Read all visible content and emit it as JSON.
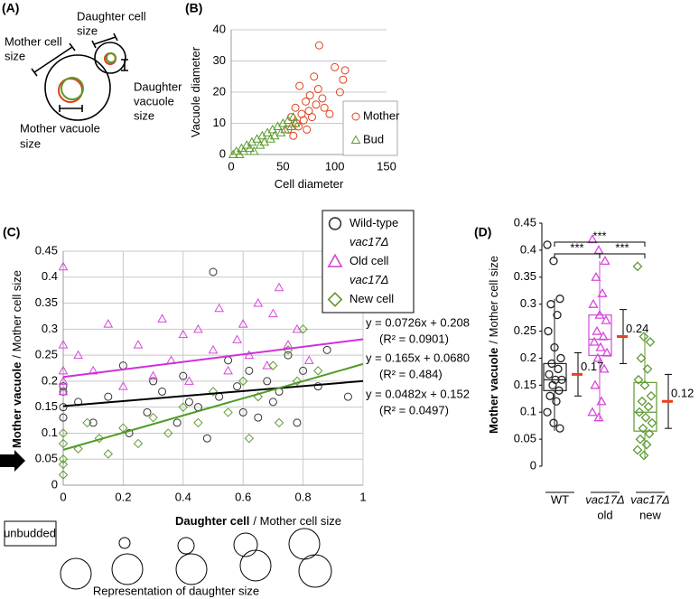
{
  "panel_labels": [
    "(A)",
    "(B)",
    "(C)",
    "(D)"
  ],
  "diagram": {
    "mother_cell_size": [
      "Mother cell",
      "size"
    ],
    "daughter_cell_size": [
      "Daughter cell",
      "size"
    ],
    "daughter_vacuole_size": [
      "Daughter",
      "vacuole",
      "size"
    ],
    "mother_vacuole_size": [
      "Mother vacuole",
      "size"
    ]
  },
  "representation": {
    "unbudded": "unbudded",
    "caption": "Representation of daughter size"
  },
  "chart_data": [
    {
      "type": "scatter",
      "xlabel": [
        "Cell diameter"
      ],
      "ylabel": [
        "Vacuole diameter"
      ],
      "xlim": [
        0,
        150
      ],
      "xticks": [
        0,
        50,
        100,
        150
      ],
      "ylim": [
        0,
        40
      ],
      "yticks": [
        0,
        10,
        20,
        30,
        40
      ],
      "grid": "y",
      "legend": "lower right",
      "series": [
        {
          "name": [
            "Mother"
          ],
          "color": "#e0401c",
          "marker": "circle",
          "x": [
            55,
            58,
            60,
            62,
            63,
            65,
            66,
            68,
            70,
            72,
            73,
            75,
            76,
            78,
            80,
            82,
            84,
            85,
            88,
            90,
            95,
            100,
            105,
            108,
            110
          ],
          "values": [
            8,
            12,
            6,
            15,
            10,
            9,
            22,
            13,
            11,
            17,
            8,
            14,
            19,
            12,
            25,
            16,
            21,
            35,
            18,
            15,
            13,
            28,
            20,
            24,
            27
          ]
        },
        {
          "name": [
            "Bud"
          ],
          "color": "#5b9b2b",
          "marker": "triangle",
          "x": [
            2,
            5,
            8,
            10,
            12,
            15,
            18,
            20,
            22,
            25,
            28,
            30,
            32,
            35,
            38,
            40,
            42,
            45,
            48,
            50,
            52,
            55,
            58,
            60,
            62
          ],
          "values": [
            0,
            1,
            0,
            2,
            1,
            3,
            2,
            4,
            1,
            5,
            3,
            6,
            4,
            7,
            5,
            8,
            6,
            9,
            7,
            10,
            8,
            11,
            9,
            12,
            10
          ]
        }
      ]
    },
    {
      "type": "scatter",
      "xlabel": [
        "Daughter cell",
        "/ Mother cell size"
      ],
      "ylabel": [
        "Mother vacuole",
        "/ Mother cell size"
      ],
      "xlim": [
        0,
        1
      ],
      "xticks": [
        0,
        0.2,
        0.4,
        0.6,
        0.8,
        1
      ],
      "ylim": [
        0,
        0.45
      ],
      "yticks": [
        0,
        0.05,
        0.1,
        0.15,
        0.2,
        0.25,
        0.3,
        0.35,
        0.4,
        0.45
      ],
      "grid": "both",
      "legend": "upper right",
      "series": [
        {
          "name": [
            "Wild-type"
          ],
          "color": "#333333",
          "marker": "circle",
          "x": [
            0,
            0,
            0,
            0,
            0.05,
            0.1,
            0.15,
            0.2,
            0.22,
            0.28,
            0.3,
            0.33,
            0.38,
            0.4,
            0.42,
            0.45,
            0.48,
            0.5,
            0.52,
            0.55,
            0.58,
            0.6,
            0.62,
            0.65,
            0.68,
            0.7,
            0.72,
            0.75,
            0.78,
            0.8,
            0.85,
            0.88,
            0.95
          ],
          "values": [
            0.15,
            0.18,
            0.19,
            0.13,
            0.16,
            0.12,
            0.17,
            0.23,
            0.1,
            0.14,
            0.2,
            0.18,
            0.12,
            0.21,
            0.16,
            0.15,
            0.09,
            0.41,
            0.17,
            0.24,
            0.19,
            0.14,
            0.22,
            0.13,
            0.2,
            0.16,
            0.18,
            0.25,
            0.12,
            0.22,
            0.19,
            0.26,
            0.17
          ],
          "fit": {
            "slope": 0.0482,
            "intercept": 0.152,
            "equation": "y = 0.0482x + 0.152",
            "r2": "(R² = 0.0497)",
            "color": "#000000"
          }
        },
        {
          "name": [
            "vac17Δ",
            "Old cell"
          ],
          "color": "#d548d8",
          "marker": "triangle",
          "x": [
            0,
            0,
            0,
            0,
            0,
            0.05,
            0.1,
            0.15,
            0.2,
            0.25,
            0.3,
            0.33,
            0.36,
            0.4,
            0.42,
            0.45,
            0.5,
            0.52,
            0.55,
            0.58,
            0.6,
            0.62,
            0.65,
            0.68,
            0.7,
            0.72,
            0.75,
            0.78,
            0.82
          ],
          "values": [
            0.42,
            0.27,
            0.22,
            0.2,
            0.18,
            0.25,
            0.22,
            0.31,
            0.19,
            0.27,
            0.21,
            0.32,
            0.24,
            0.29,
            0.2,
            0.3,
            0.26,
            0.34,
            0.22,
            0.28,
            0.31,
            0.25,
            0.35,
            0.23,
            0.33,
            0.38,
            0.27,
            0.3,
            0.24
          ],
          "fit": {
            "slope": 0.0726,
            "intercept": 0.208,
            "equation": "y = 0.0726x + 0.208",
            "r2": "(R² = 0.0901)",
            "color": "#d030d8"
          }
        },
        {
          "name": [
            "vac17Δ",
            "New cell"
          ],
          "color": "#5e9a32",
          "marker": "diamond",
          "x": [
            0,
            0,
            0,
            0,
            0,
            0.05,
            0.08,
            0.12,
            0.15,
            0.2,
            0.25,
            0.3,
            0.35,
            0.4,
            0.45,
            0.5,
            0.55,
            0.6,
            0.62,
            0.65,
            0.7,
            0.72,
            0.75,
            0.78,
            0.8,
            0.85
          ],
          "values": [
            0.02,
            0.05,
            0.08,
            0.1,
            0.04,
            0.07,
            0.12,
            0.09,
            0.06,
            0.11,
            0.08,
            0.13,
            0.1,
            0.15,
            0.12,
            0.18,
            0.14,
            0.2,
            0.09,
            0.17,
            0.23,
            0.12,
            0.26,
            0.2,
            0.3,
            0.22
          ],
          "fit": {
            "slope": 0.165,
            "intercept": 0.068,
            "equation": "y = 0.165x + 0.0680",
            "r2": "(R² = 0.484)",
            "color": "#4f9a25"
          }
        }
      ]
    },
    {
      "type": "box",
      "ylabel": [
        "Mother vacuole",
        "/ Mother cell size"
      ],
      "ylim": [
        0,
        0.45
      ],
      "yticks": [
        0,
        0.05,
        0.1,
        0.15,
        0.2,
        0.25,
        0.3,
        0.35,
        0.4,
        0.45
      ],
      "categories": [
        [
          "WT"
        ],
        [
          "vac17Δ",
          "old"
        ],
        [
          "vac17Δ",
          "new"
        ]
      ],
      "mean_color": "#e8401c",
      "annotations": [
        "***",
        "***",
        "***"
      ],
      "series": [
        {
          "color": "#222222",
          "marker": "circle",
          "values": [
            0.41,
            0.38,
            0.31,
            0.3,
            0.28,
            0.25,
            0.22,
            0.2,
            0.19,
            0.18,
            0.17,
            0.16,
            0.16,
            0.15,
            0.14,
            0.13,
            0.12,
            0.1,
            0.08,
            0.07
          ],
          "q1": 0.14,
          "median": 0.16,
          "q3": 0.19,
          "whisker_low": 0.065,
          "whisker_high": 0.31,
          "mean": 0.17,
          "error": 0.04
        },
        {
          "color": "#d548d8",
          "marker": "triangle",
          "values": [
            0.42,
            0.4,
            0.38,
            0.35,
            0.32,
            0.3,
            0.28,
            0.27,
            0.25,
            0.24,
            0.23,
            0.22,
            0.21,
            0.2,
            0.18,
            0.15,
            0.12,
            0.1,
            0.09
          ],
          "q1": 0.205,
          "median": 0.235,
          "q3": 0.28,
          "whisker_low": 0.085,
          "whisker_high": 0.38,
          "mean": 0.24,
          "error": 0.05
        },
        {
          "color": "#5e9a32",
          "marker": "diamond",
          "values": [
            0.37,
            0.24,
            0.23,
            0.2,
            0.18,
            0.16,
            0.15,
            0.13,
            0.12,
            0.11,
            0.1,
            0.09,
            0.08,
            0.07,
            0.06,
            0.05,
            0.04,
            0.03,
            0.02
          ],
          "q1": 0.065,
          "median": 0.1,
          "q3": 0.155,
          "whisker_low": 0.015,
          "whisker_high": 0.245,
          "mean": 0.12,
          "error": 0.05
        }
      ]
    }
  ]
}
